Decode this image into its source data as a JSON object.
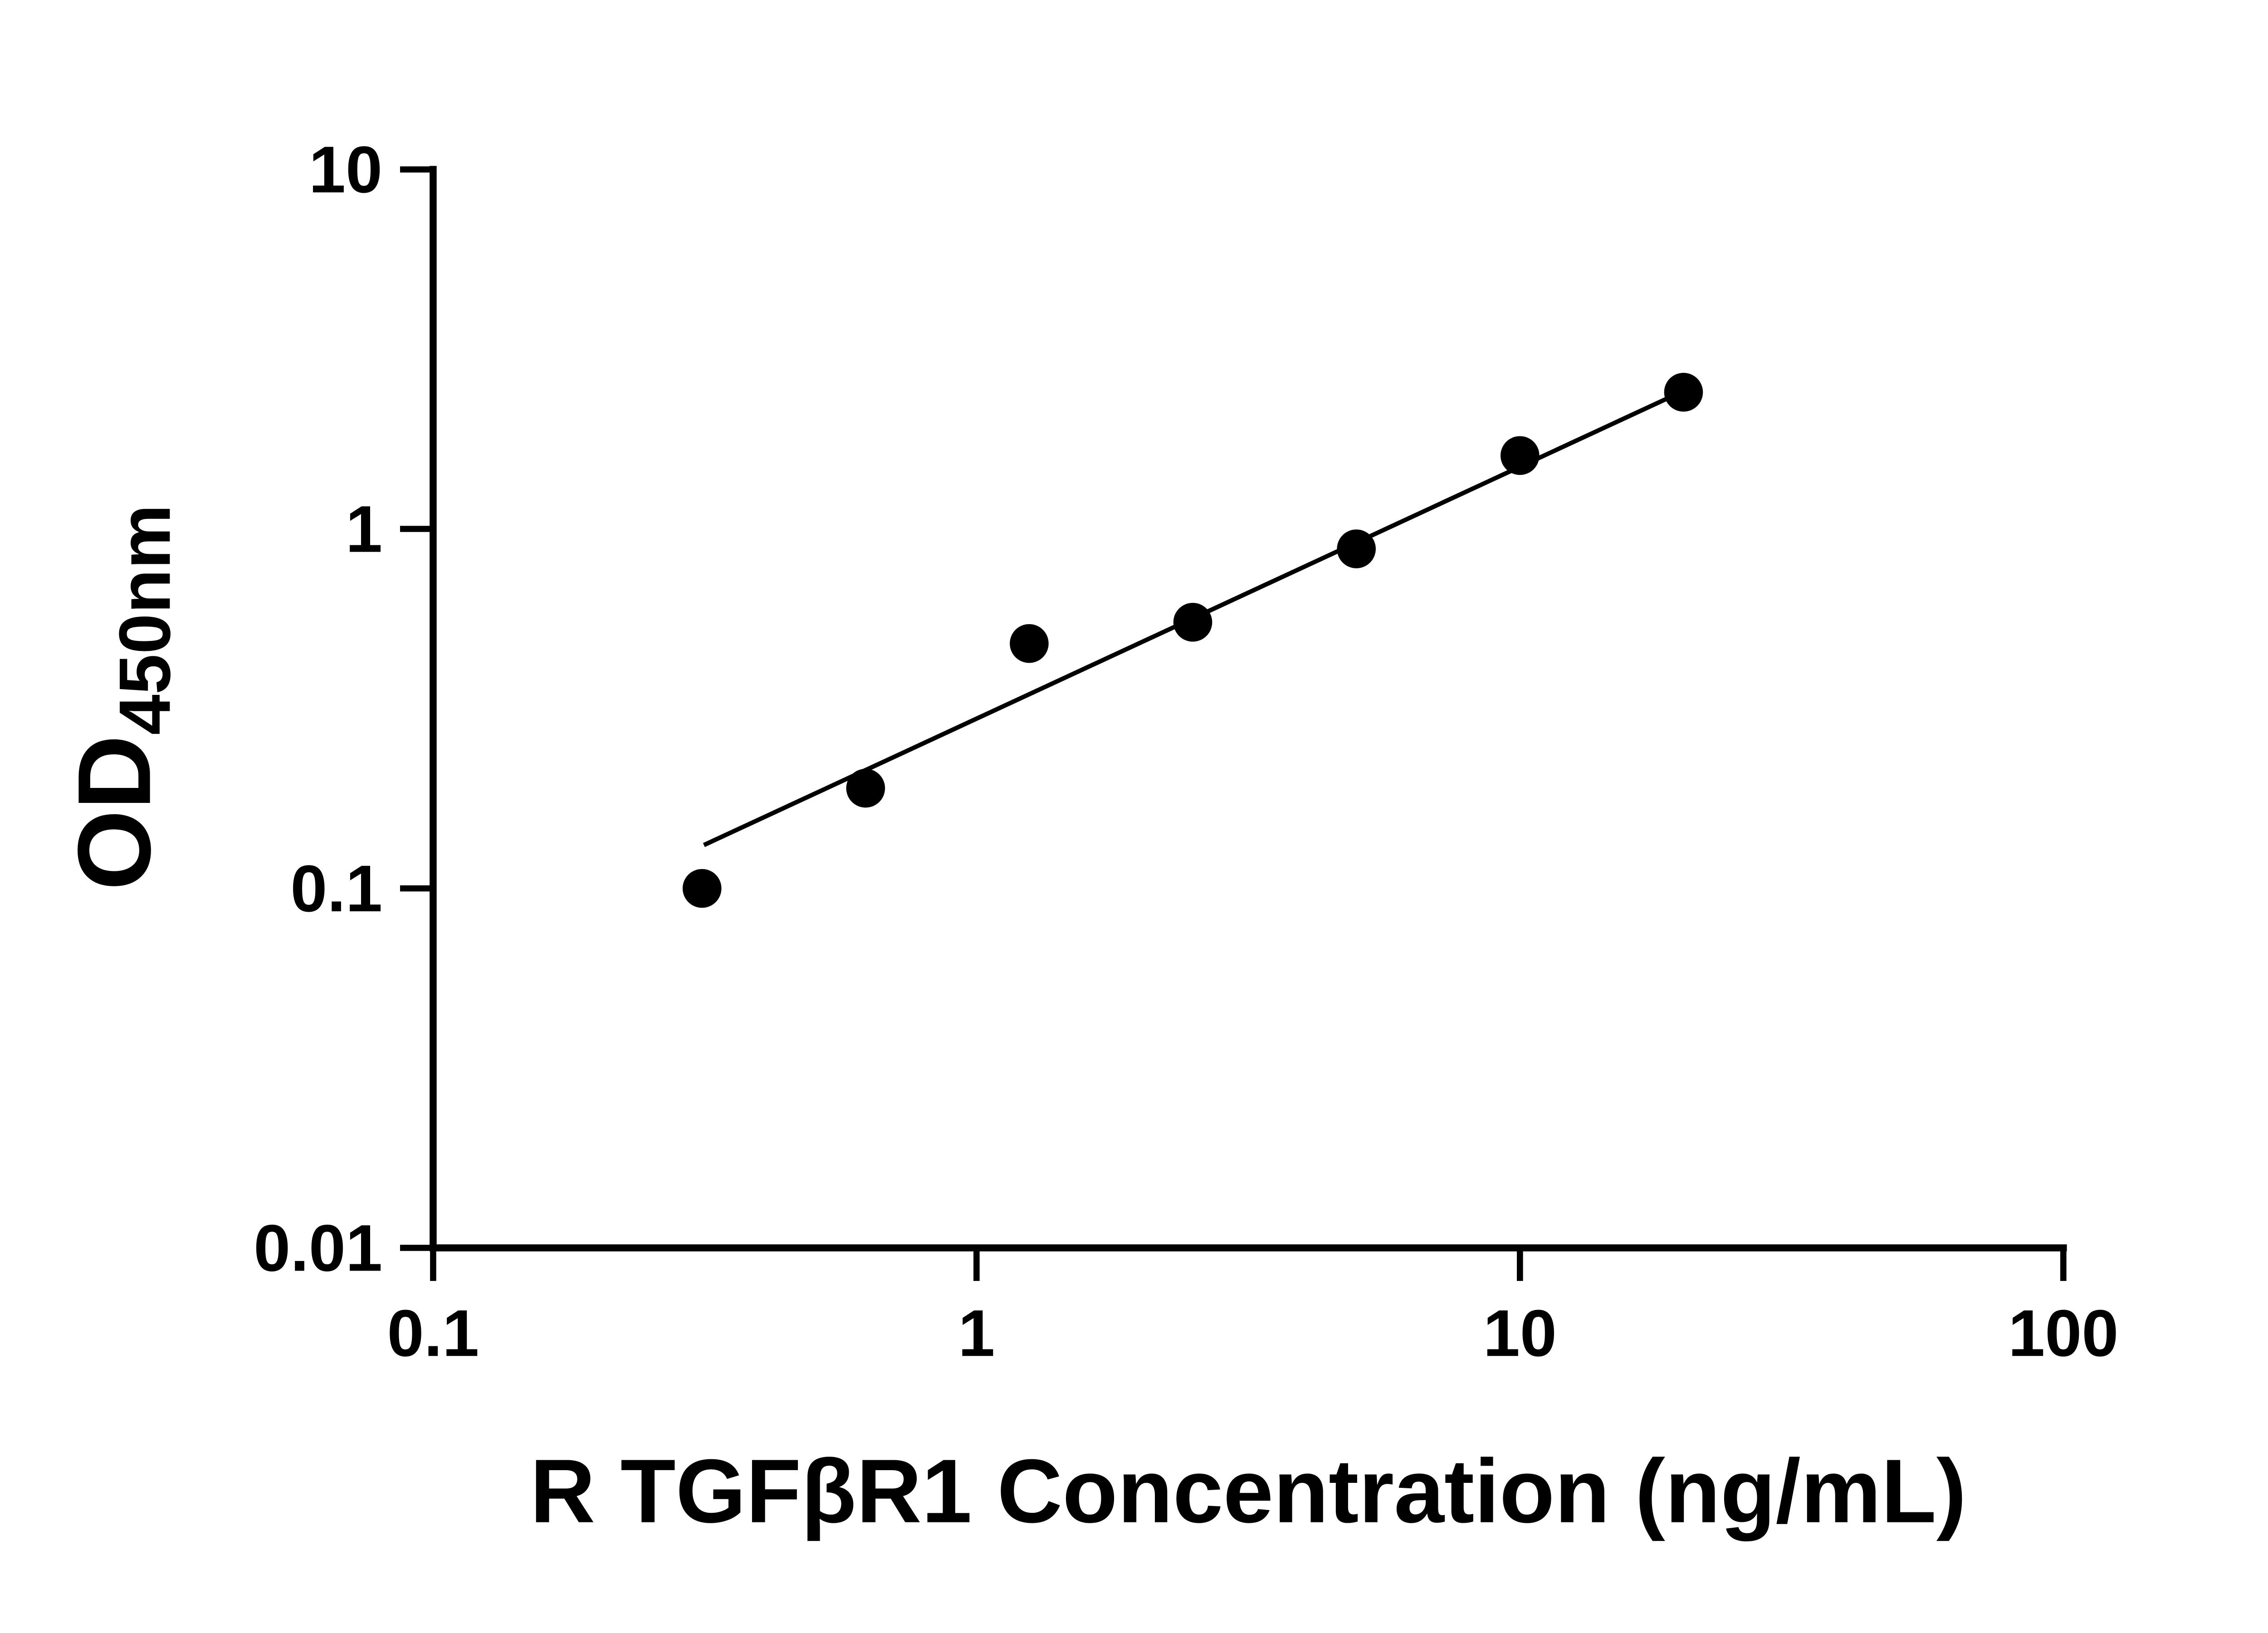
{
  "chart_data": {
    "type": "scatter",
    "title": "",
    "xlabel": "R TGFβR1 Concentration (ng/mL)",
    "ylabel_main": "OD",
    "ylabel_sub": "450nm",
    "x_scale": "log",
    "y_scale": "log",
    "xlim": [
      0.1,
      100
    ],
    "ylim": [
      0.01,
      10
    ],
    "grid": false,
    "legend": "none",
    "x_ticks": [
      {
        "value": 0.1,
        "label": "0.1"
      },
      {
        "value": 1,
        "label": "1"
      },
      {
        "value": 10,
        "label": "10"
      },
      {
        "value": 100,
        "label": "100"
      }
    ],
    "y_ticks": [
      {
        "value": 0.01,
        "label": "0.01"
      },
      {
        "value": 0.1,
        "label": "0.1"
      },
      {
        "value": 1,
        "label": "1"
      },
      {
        "value": 10,
        "label": "10"
      }
    ],
    "points": [
      {
        "x": 0.3125,
        "y": 0.1
      },
      {
        "x": 0.625,
        "y": 0.19
      },
      {
        "x": 1.25,
        "y": 0.48
      },
      {
        "x": 2.5,
        "y": 0.55
      },
      {
        "x": 5,
        "y": 0.88
      },
      {
        "x": 10,
        "y": 1.6
      },
      {
        "x": 20,
        "y": 2.4
      }
    ],
    "trend_line": {
      "x1": 0.315,
      "y1": 0.132,
      "x2": 20,
      "y2": 2.42
    },
    "point_color": "#000000",
    "line_color": "#000000",
    "axis_color": "#000000",
    "background_color": "#ffffff"
  }
}
